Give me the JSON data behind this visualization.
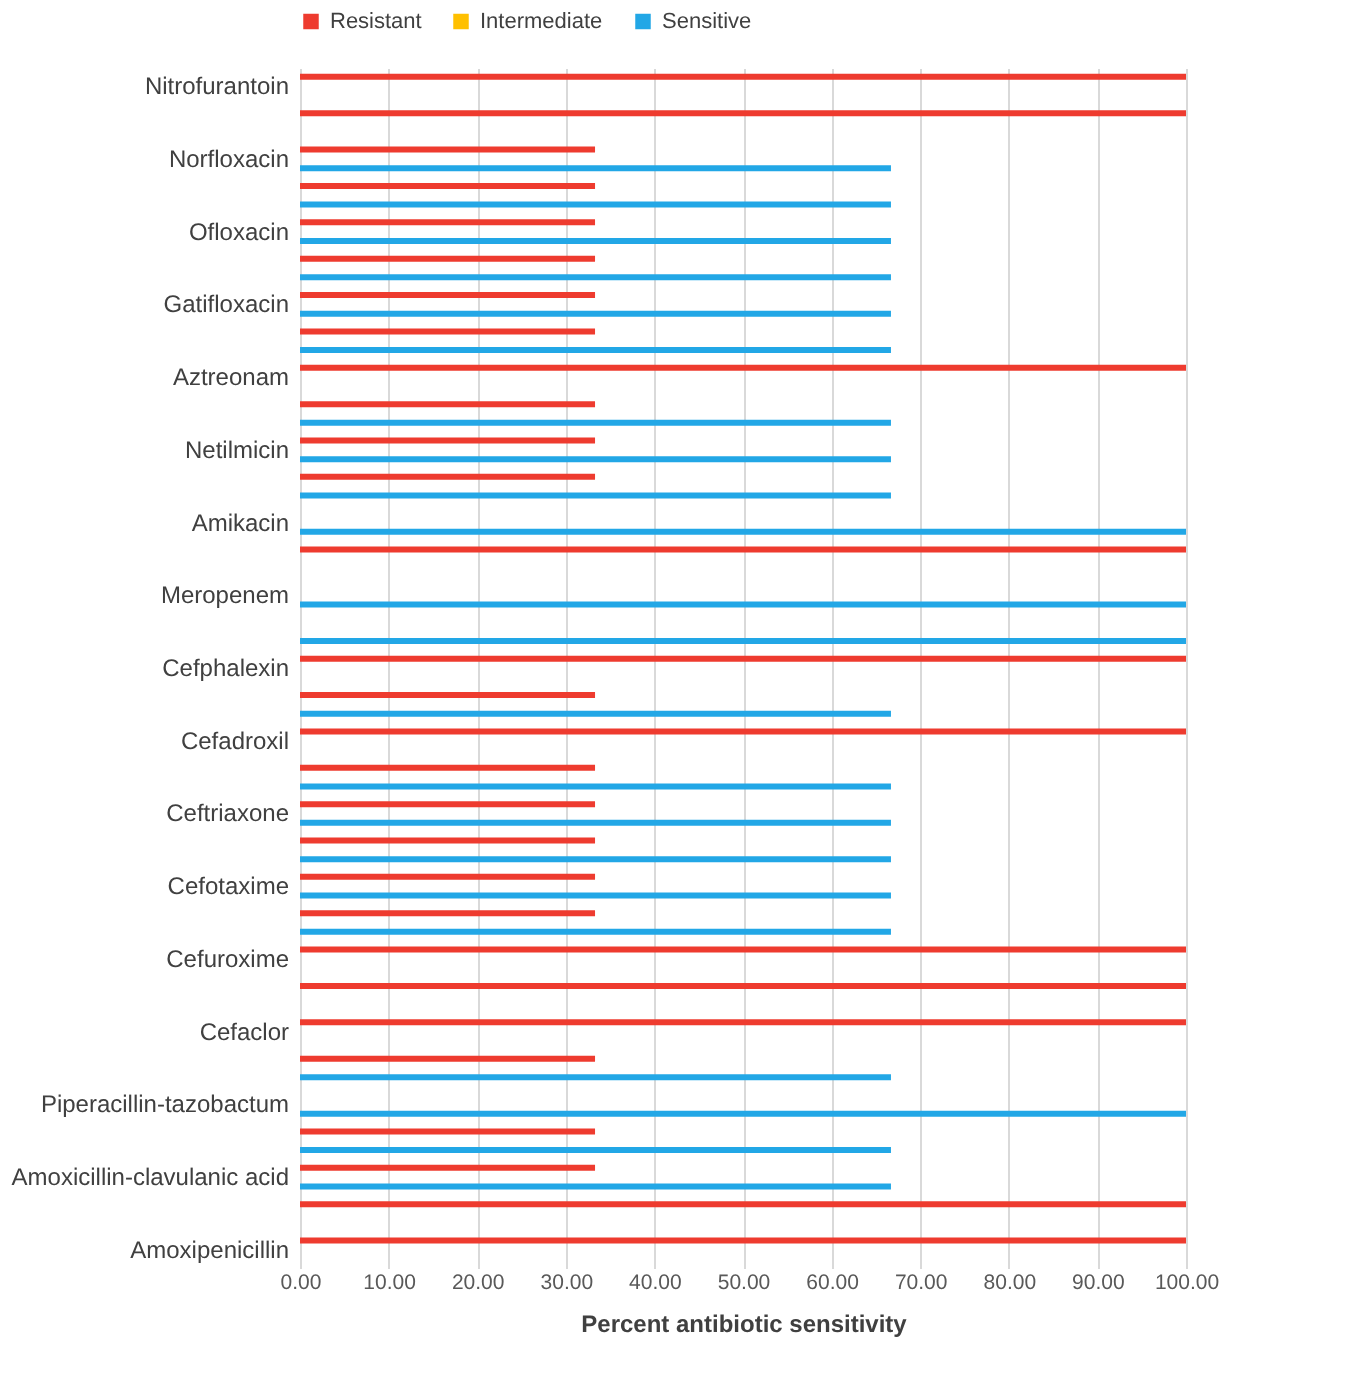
{
  "chart_data": {
    "type": "bar",
    "orientation": "horizontal",
    "xlabel": "Percent antibiotic sensitivity",
    "categories": [
      "Nitrofurantoin",
      null,
      "Norfloxacin",
      null,
      "Ofloxacin",
      null,
      "Gatifloxacin",
      null,
      "Aztreonam",
      null,
      "Netilmicin",
      null,
      "Amikacin",
      null,
      "Meropenem",
      null,
      "Cefphalexin",
      null,
      "Cefadroxil",
      null,
      "Ceftriaxone",
      null,
      "Cefotaxime",
      null,
      "Cefuroxime",
      null,
      "Cefaclor",
      null,
      "Piperacillin-tazobactum",
      null,
      "Amoxicillin-clavulanic acid",
      null,
      "Amoxipenicillin"
    ],
    "series": [
      {
        "name": "Resistant",
        "color": "#ee3b2f",
        "values": [
          100,
          100,
          33.3,
          33.3,
          33.3,
          33.3,
          33.3,
          33.3,
          100,
          33.3,
          33.3,
          33.3,
          0,
          100,
          0,
          0,
          100,
          33.3,
          100,
          33.3,
          33.3,
          33.3,
          33.3,
          33.3,
          100,
          100,
          100,
          33.3,
          0,
          33.3,
          33.3,
          100,
          100
        ]
      },
      {
        "name": "Intermediate",
        "color": "#ffc000",
        "values": [
          0,
          0,
          0,
          0,
          0,
          0,
          0,
          0,
          0,
          0,
          0,
          0,
          0,
          0,
          0,
          0,
          0,
          0,
          0,
          0,
          0,
          0,
          0,
          0,
          0,
          0,
          0,
          0,
          0,
          0,
          0,
          0,
          0
        ]
      },
      {
        "name": "Sensitive",
        "color": "#22a7e6",
        "values": [
          0,
          0,
          66.7,
          66.7,
          66.7,
          66.7,
          66.7,
          66.7,
          0,
          66.7,
          66.7,
          66.7,
          100,
          0,
          100,
          100,
          0,
          66.7,
          0,
          66.7,
          66.7,
          66.7,
          66.7,
          66.7,
          0,
          0,
          0,
          66.7,
          100,
          66.7,
          66.7,
          0,
          0
        ]
      }
    ],
    "xlim": [
      0,
      100
    ],
    "xticks": [
      {
        "value": 0,
        "label": "0.00"
      },
      {
        "value": 10,
        "label": "10.00"
      },
      {
        "value": 20,
        "label": "20.00"
      },
      {
        "value": 30,
        "label": "30.00"
      },
      {
        "value": 40,
        "label": "40.00"
      },
      {
        "value": 50,
        "label": "50.00"
      },
      {
        "value": 60,
        "label": "60.00"
      },
      {
        "value": 70,
        "label": "70.00"
      },
      {
        "value": 80,
        "label": "80.00"
      },
      {
        "value": 90,
        "label": "90.00"
      },
      {
        "value": 100,
        "label": "100.00"
      }
    ],
    "grid": "x",
    "legend": "top"
  }
}
